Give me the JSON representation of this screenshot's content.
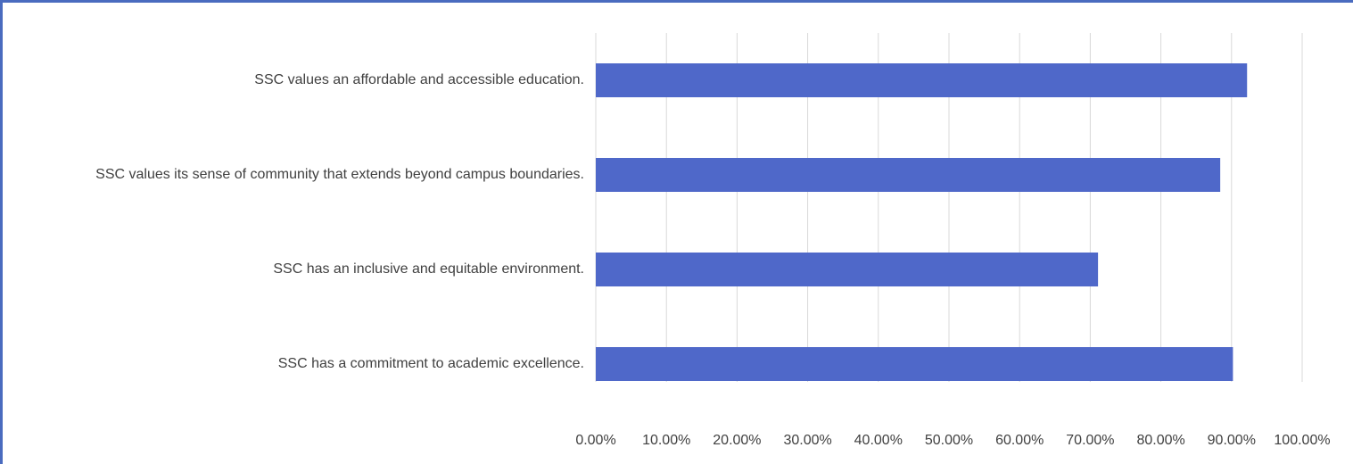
{
  "chart_data": {
    "type": "bar",
    "orientation": "horizontal",
    "categories": [
      "SSC values an affordable and accessible education.",
      "SSC values its sense of community that extends beyond campus boundaries.",
      "SSC has an inclusive and equitable environment.",
      "SSC has a commitment to academic excellence."
    ],
    "values": [
      92.2,
      88.4,
      71.1,
      90.2
    ],
    "color": "#4f68c9",
    "xlim": [
      0,
      100
    ],
    "xticks": [
      {
        "value": 0,
        "label": "0.00%"
      },
      {
        "value": 10,
        "label": "10.00%"
      },
      {
        "value": 20,
        "label": "20.00%"
      },
      {
        "value": 30,
        "label": "30.00%"
      },
      {
        "value": 40,
        "label": "40.00%"
      },
      {
        "value": 50,
        "label": "50.00%"
      },
      {
        "value": 60,
        "label": "60.00%"
      },
      {
        "value": 70,
        "label": "70.00%"
      },
      {
        "value": 80,
        "label": "80.00%"
      },
      {
        "value": 90,
        "label": "90.00%"
      },
      {
        "value": 100,
        "label": "100.00%"
      }
    ],
    "grid": true
  }
}
